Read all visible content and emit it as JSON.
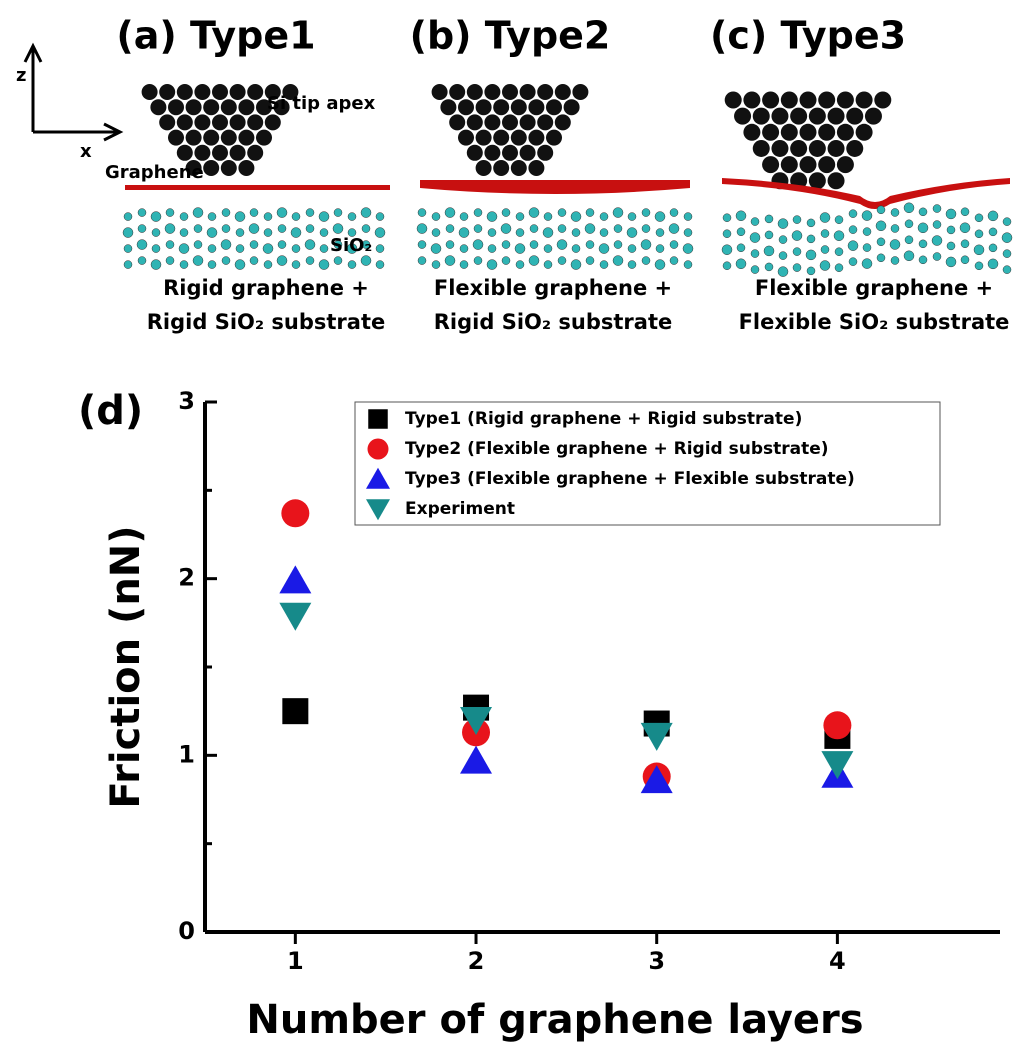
{
  "panels": [
    {
      "title": "(a) Type1",
      "caption": [
        "Rigid graphene +",
        "Rigid SiO₂ substrate"
      ],
      "labels": [
        "Si tip apex",
        "Graphene",
        "SiO₂"
      ]
    },
    {
      "title": "(b) Type2",
      "caption": [
        "Flexible graphene +",
        "Rigid SiO₂ substrate"
      ]
    },
    {
      "title": "(c) Type3",
      "caption": [
        "Flexible graphene +",
        "Flexible SiO₂ substrate"
      ]
    }
  ],
  "axes_labels": [
    "z",
    "x"
  ],
  "chart_data": {
    "type": "scatter",
    "panel_label": "(d)",
    "x_label": "Number of graphene layers",
    "y_label": "Friction (nN)",
    "xlim": [
      0.5,
      4.9
    ],
    "ylim": [
      0,
      3
    ],
    "xticks": [
      1,
      2,
      3,
      4
    ],
    "yticks": [
      0,
      1,
      2,
      3
    ],
    "yminor_ticks": [
      0.5,
      1.5,
      2.5
    ],
    "legend": "upper right",
    "series": [
      {
        "name": "Type1 (Rigid graphene + Rigid substrate)",
        "color": "#000000",
        "marker": "square",
        "x": [
          1,
          2,
          3,
          4
        ],
        "values": [
          1.25,
          1.27,
          1.18,
          1.11
        ]
      },
      {
        "name": "Type2 (Flexible graphene + Rigid substrate)",
        "color": "#e8141b",
        "marker": "circle",
        "x": [
          1,
          2,
          3,
          4
        ],
        "values": [
          2.37,
          1.13,
          0.88,
          1.17
        ]
      },
      {
        "name": "Type3 (Flexible graphene + Flexible substrate)",
        "color": "#1a1ae6",
        "marker": "triangle-up",
        "x": [
          1,
          2,
          3,
          4
        ],
        "values": [
          1.99,
          0.97,
          0.86,
          0.89
        ]
      },
      {
        "name": "Experiment",
        "color": "#168a8a",
        "marker": "triangle-down",
        "x": [
          1,
          2,
          3,
          4
        ],
        "values": [
          1.79,
          1.2,
          1.11,
          0.95
        ]
      }
    ]
  }
}
